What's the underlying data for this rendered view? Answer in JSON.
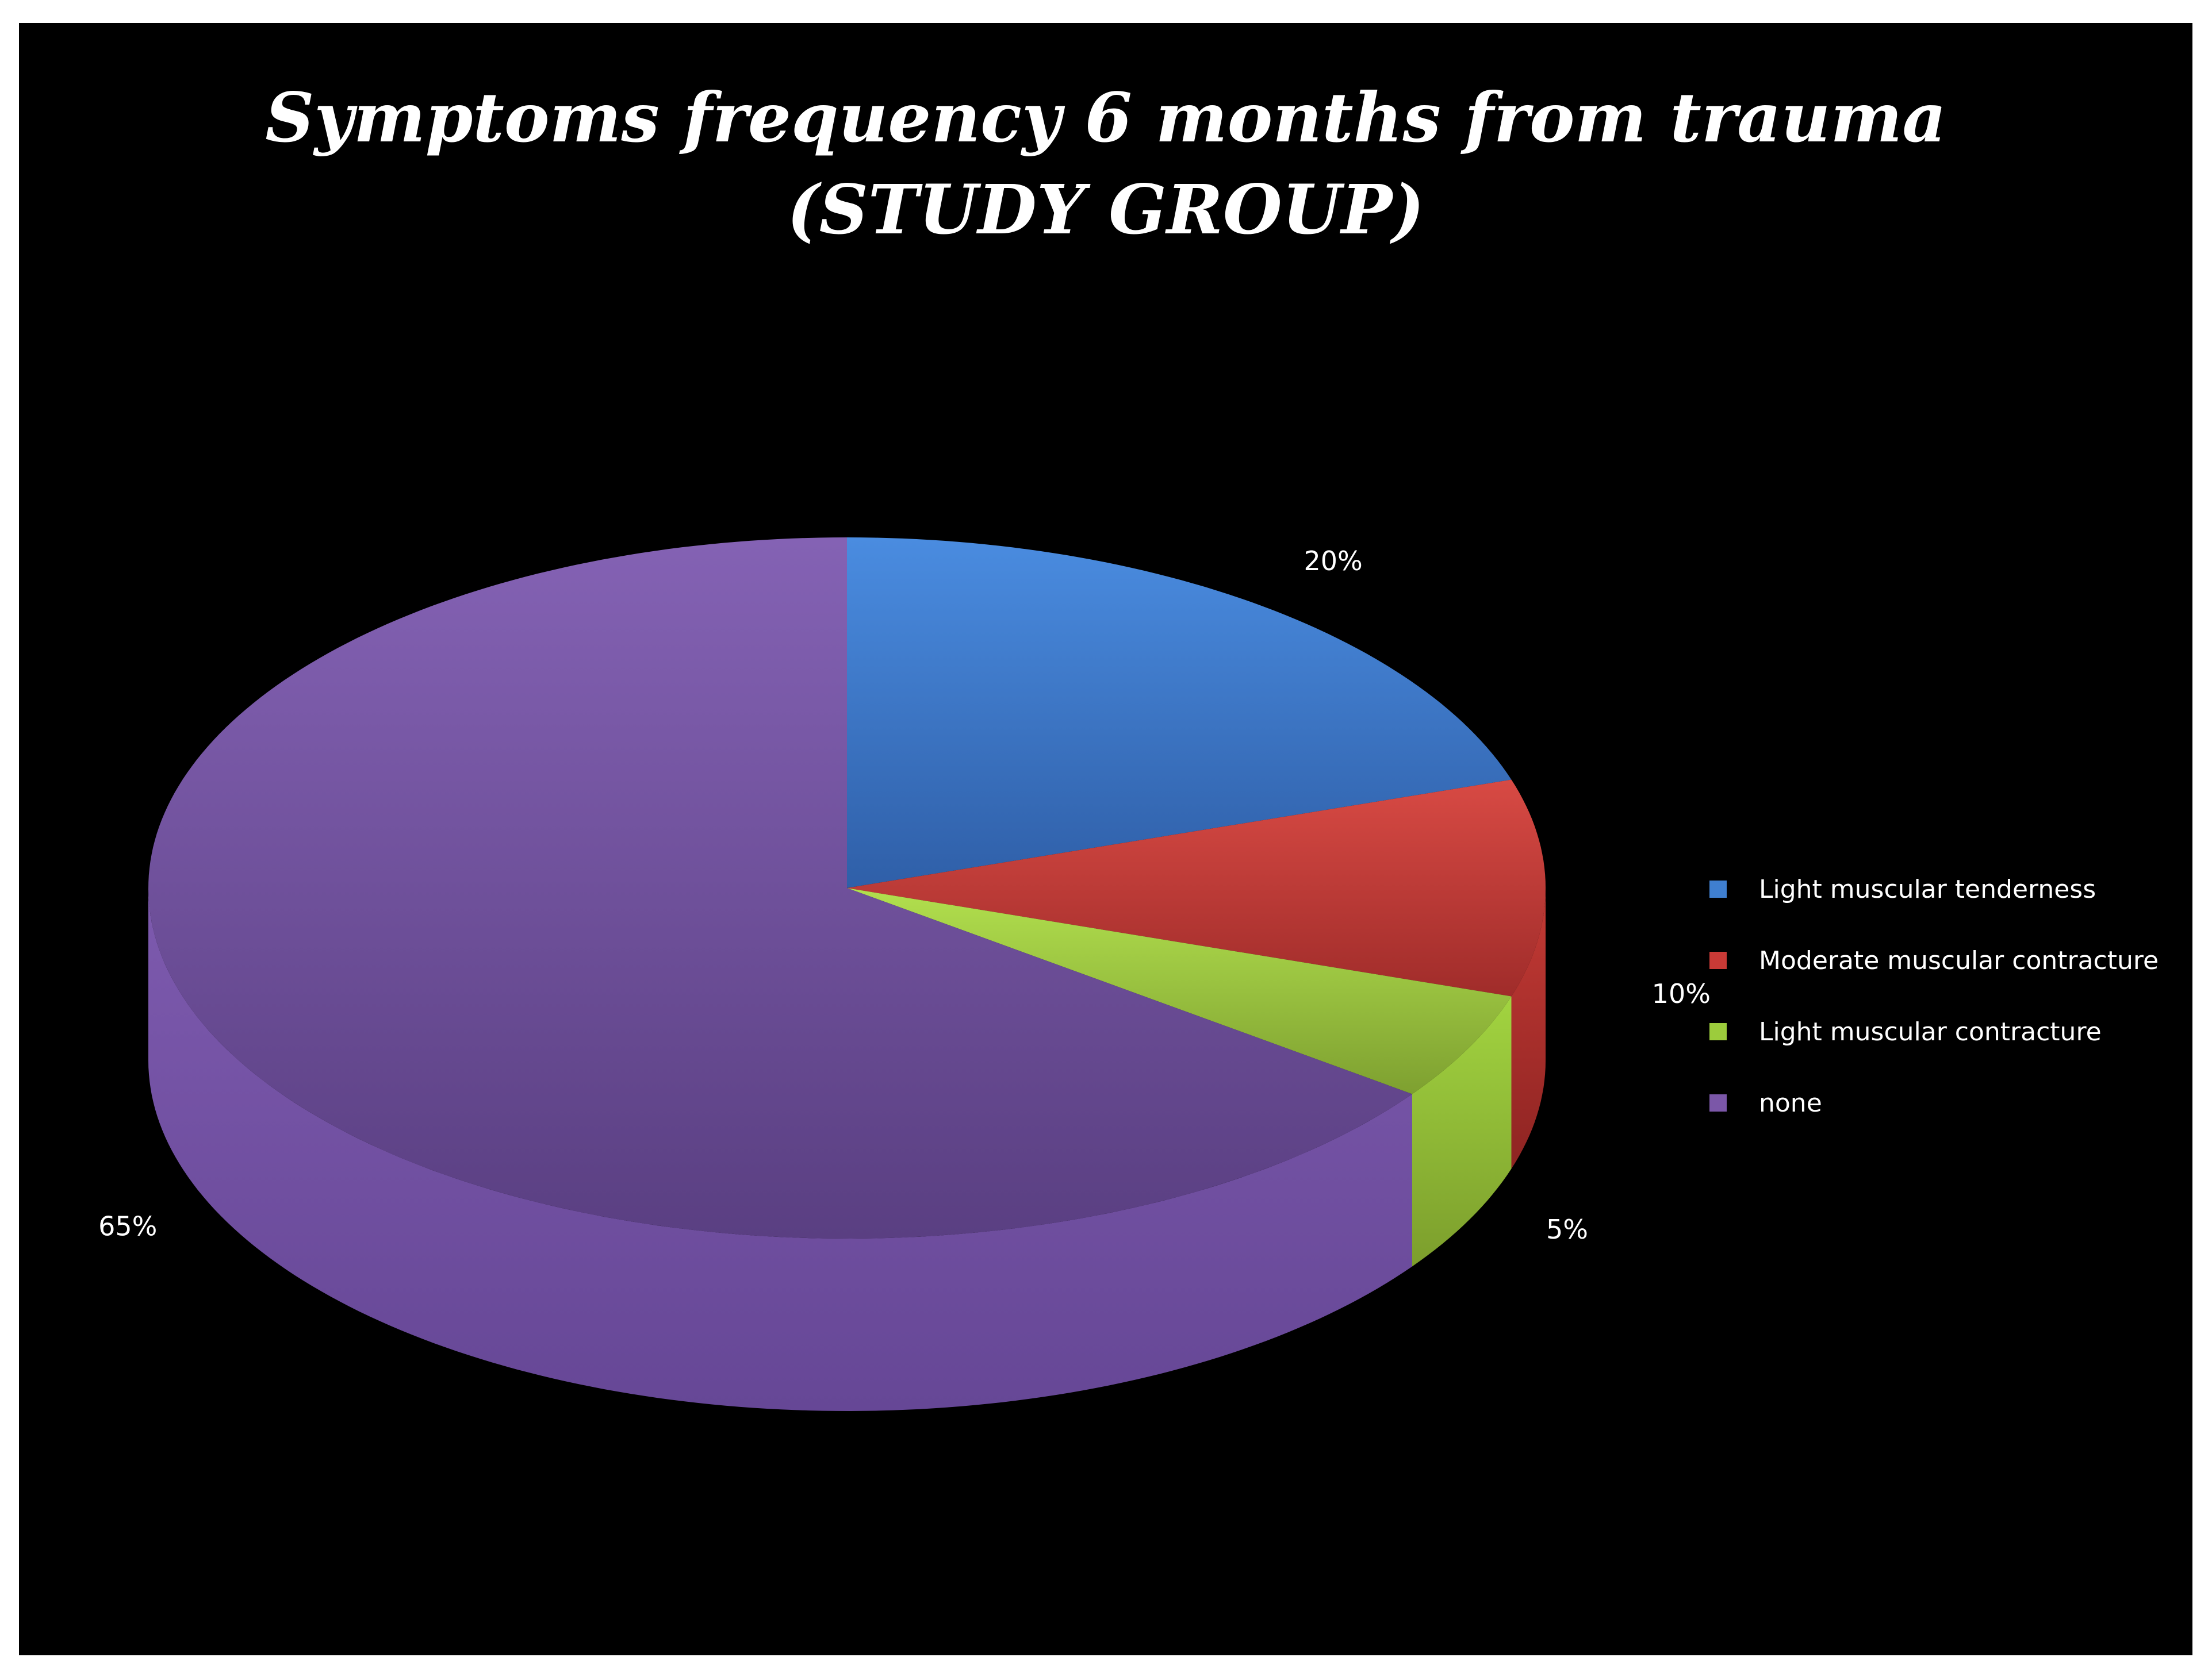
{
  "chart_data": {
    "type": "pie",
    "title": "Symptoms frequency 6 months from trauma (STUDY GROUP)",
    "categories": [
      "Light muscular tenderness",
      "Moderate muscular contracture",
      "Light muscular contracture",
      "none"
    ],
    "values": [
      20,
      10,
      5,
      65
    ],
    "labels": [
      "20%",
      "10%",
      "5%",
      "65%"
    ],
    "colors": [
      "#3f7fd0",
      "#c93a36",
      "#9ccc3c",
      "#7b57a8"
    ],
    "style": "3d",
    "legend_position": "right"
  }
}
